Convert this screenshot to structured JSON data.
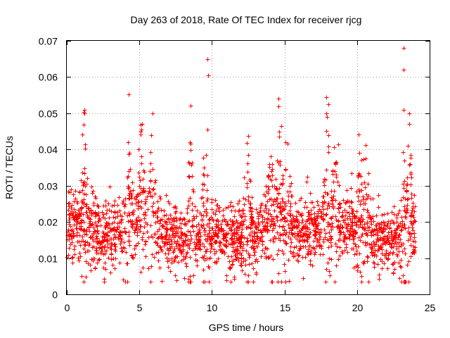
{
  "chart_data": {
    "type": "scatter",
    "title": "Day 263 of 2018, Rate Of TEC Index for receiver rjcg",
    "xlabel": "GPS time / hours",
    "ylabel": "ROTI / TECUs",
    "xlim": [
      0,
      25
    ],
    "ylim": [
      0,
      0.07
    ],
    "xticks": [
      0,
      5,
      10,
      15,
      20,
      25
    ],
    "xtick_labels": [
      "0",
      "5",
      "10",
      "15",
      "20",
      "25"
    ],
    "yticks": [
      0,
      0.01,
      0.02,
      0.03,
      0.04,
      0.05,
      0.06,
      0.07
    ],
    "ytick_labels": [
      "0",
      "0.01",
      "0.02",
      "0.03",
      "0.04",
      "0.05",
      "0.06",
      "0.07"
    ],
    "grid": true,
    "marker": "+",
    "color": "#ff0000",
    "series": [
      {
        "name": "ROTI",
        "data_range_x": [
          0,
          24
        ],
        "baseline_profile": [
          {
            "x": 0.0,
            "y": 0.018
          },
          {
            "x": 1.0,
            "y": 0.02
          },
          {
            "x": 2.0,
            "y": 0.017
          },
          {
            "x": 3.0,
            "y": 0.016
          },
          {
            "x": 4.0,
            "y": 0.019
          },
          {
            "x": 5.0,
            "y": 0.021
          },
          {
            "x": 6.0,
            "y": 0.019
          },
          {
            "x": 7.0,
            "y": 0.016
          },
          {
            "x": 8.0,
            "y": 0.015
          },
          {
            "x": 9.0,
            "y": 0.016
          },
          {
            "x": 10.0,
            "y": 0.017
          },
          {
            "x": 11.0,
            "y": 0.016
          },
          {
            "x": 12.0,
            "y": 0.015
          },
          {
            "x": 13.0,
            "y": 0.014
          },
          {
            "x": 14.0,
            "y": 0.02
          },
          {
            "x": 15.0,
            "y": 0.019
          },
          {
            "x": 16.0,
            "y": 0.018
          },
          {
            "x": 17.0,
            "y": 0.018
          },
          {
            "x": 18.0,
            "y": 0.02
          },
          {
            "x": 19.0,
            "y": 0.019
          },
          {
            "x": 20.0,
            "y": 0.018
          },
          {
            "x": 21.0,
            "y": 0.016
          },
          {
            "x": 22.0,
            "y": 0.015
          },
          {
            "x": 23.0,
            "y": 0.016
          },
          {
            "x": 24.0,
            "y": 0.017
          }
        ],
        "notable_points": [
          {
            "x": 1.2,
            "y": 0.051
          },
          {
            "x": 1.2,
            "y": 0.05
          },
          {
            "x": 5.2,
            "y": 0.047
          },
          {
            "x": 5.9,
            "y": 0.05
          },
          {
            "x": 5.8,
            "y": 0.044
          },
          {
            "x": 8.5,
            "y": 0.042
          },
          {
            "x": 9.7,
            "y": 0.065
          },
          {
            "x": 9.75,
            "y": 0.0605
          },
          {
            "x": 9.7,
            "y": 0.0455
          },
          {
            "x": 12.5,
            "y": 0.0437
          },
          {
            "x": 14.6,
            "y": 0.054
          },
          {
            "x": 14.6,
            "y": 0.052
          },
          {
            "x": 14.8,
            "y": 0.0465
          },
          {
            "x": 17.9,
            "y": 0.0545
          },
          {
            "x": 18.0,
            "y": 0.0525
          },
          {
            "x": 17.9,
            "y": 0.05
          },
          {
            "x": 18.0,
            "y": 0.044
          },
          {
            "x": 19.6,
            "y": 0.0335
          },
          {
            "x": 20.6,
            "y": 0.0412
          },
          {
            "x": 23.2,
            "y": 0.068
          },
          {
            "x": 23.2,
            "y": 0.062
          },
          {
            "x": 23.2,
            "y": 0.051
          },
          {
            "x": 23.6,
            "y": 0.05
          },
          {
            "x": 23.6,
            "y": 0.047
          },
          {
            "x": 23.5,
            "y": 0.041
          },
          {
            "x": 3.9,
            "y": 0.004
          },
          {
            "x": 8.5,
            "y": 0.005
          },
          {
            "x": 15.0,
            "y": 0.0065
          },
          {
            "x": 22.5,
            "y": 0.006
          }
        ]
      }
    ]
  }
}
